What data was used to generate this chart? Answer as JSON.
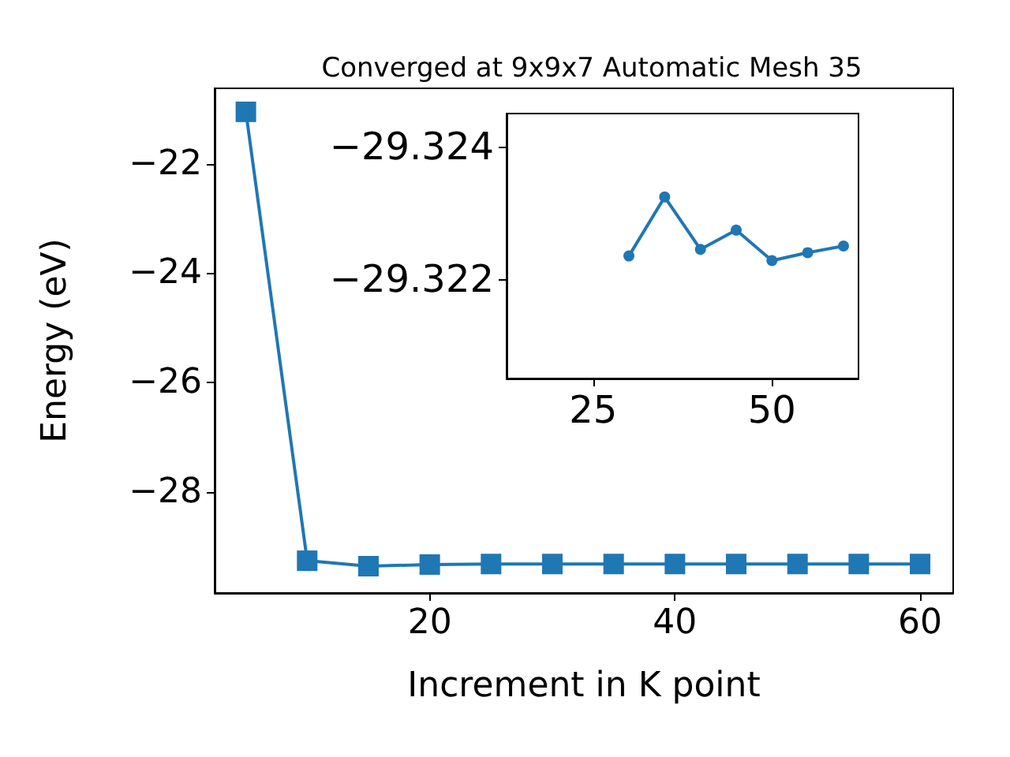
{
  "chart_data": [
    {
      "type": "line",
      "title": "Converged at 9x9x7 Automatic Mesh 35",
      "xlabel": "Increment in K point",
      "ylabel": "Energy (eV)",
      "x": [
        5,
        10,
        15,
        20,
        25,
        30,
        35,
        40,
        45,
        50,
        55,
        60
      ],
      "series": [
        {
          "color": "#1f77b4",
          "values": [
            -21.05,
            -29.26,
            -29.36,
            -29.33,
            -29.32,
            -29.32,
            -29.32,
            -29.32,
            -29.32,
            -29.32,
            -29.32,
            -29.32
          ]
        }
      ],
      "xlim": [
        2.45,
        62.7
      ],
      "xticks": [
        20,
        40,
        60
      ],
      "ylim": [
        -29.85,
        -20.62
      ],
      "yticks": [
        -28,
        -26,
        -24,
        -22
      ],
      "marker": "square"
    },
    {
      "type": "line",
      "x": [
        30,
        35,
        40,
        45,
        50,
        55,
        60
      ],
      "series": [
        {
          "color": "#1f77b4",
          "values": [
            -29.32235,
            -29.32324,
            -29.32245,
            -29.32274,
            -29.32228,
            -29.3224,
            -29.3225
          ]
        }
      ],
      "xlim": [
        12.9,
        62.1
      ],
      "xticks": [
        25,
        50
      ],
      "ylim": [
        -29.3205,
        -29.3245
      ],
      "yticks": [
        -29.324,
        -29.322
      ],
      "marker": "circle"
    }
  ]
}
